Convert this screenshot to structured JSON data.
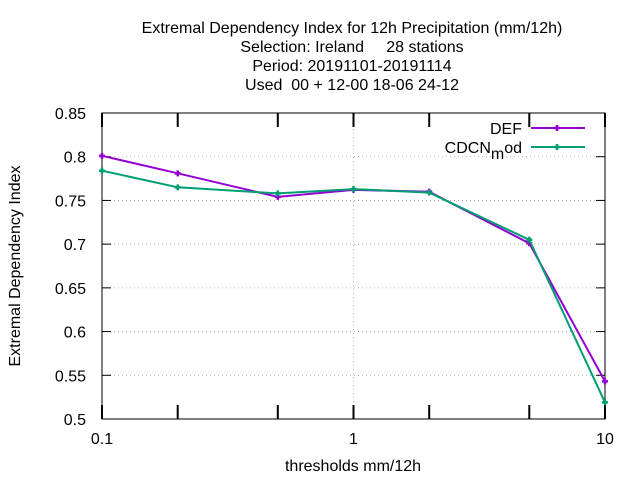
{
  "chart_data": {
    "type": "line",
    "title_lines": [
      "Extremal Dependency Index  for 12h Precipitation (mm/12h)",
      "Selection: Ireland     28 stations",
      "Period: 20191101-20191114",
      "Used  00 + 12-00 18-06 24-12"
    ],
    "xlabel": "thresholds mm/12h",
    "ylabel": "Extremal Dependency Index",
    "xscale": "log",
    "xlim": [
      0.1,
      10
    ],
    "ylim": [
      0.5,
      0.85
    ],
    "x_ticks": [
      0.1,
      1,
      10
    ],
    "x_tick_labels": [
      "0.1",
      "1",
      "10"
    ],
    "x_minor_ticks": [
      0.2,
      0.5,
      2,
      5
    ],
    "y_ticks": [
      0.5,
      0.55,
      0.6,
      0.65,
      0.7,
      0.75,
      0.8,
      0.85
    ],
    "y_tick_labels": [
      "0.5",
      "0.55",
      "0.6",
      "0.65",
      "0.7",
      "0.75",
      "0.8",
      "0.85"
    ],
    "x": [
      0.1,
      0.2,
      0.5,
      1,
      2,
      5,
      10
    ],
    "grid": "dotted at major ticks",
    "legend_position": "top-right",
    "series": [
      {
        "name": "DEF",
        "color": "#9400d3",
        "values": [
          0.801,
          0.781,
          0.754,
          0.762,
          0.76,
          0.701,
          0.543
        ]
      },
      {
        "name": "CDCN",
        "name_subscript": "m",
        "name_suffix": "od",
        "color": "#009e73",
        "values": [
          0.784,
          0.765,
          0.758,
          0.763,
          0.759,
          0.705,
          0.519
        ]
      }
    ]
  }
}
